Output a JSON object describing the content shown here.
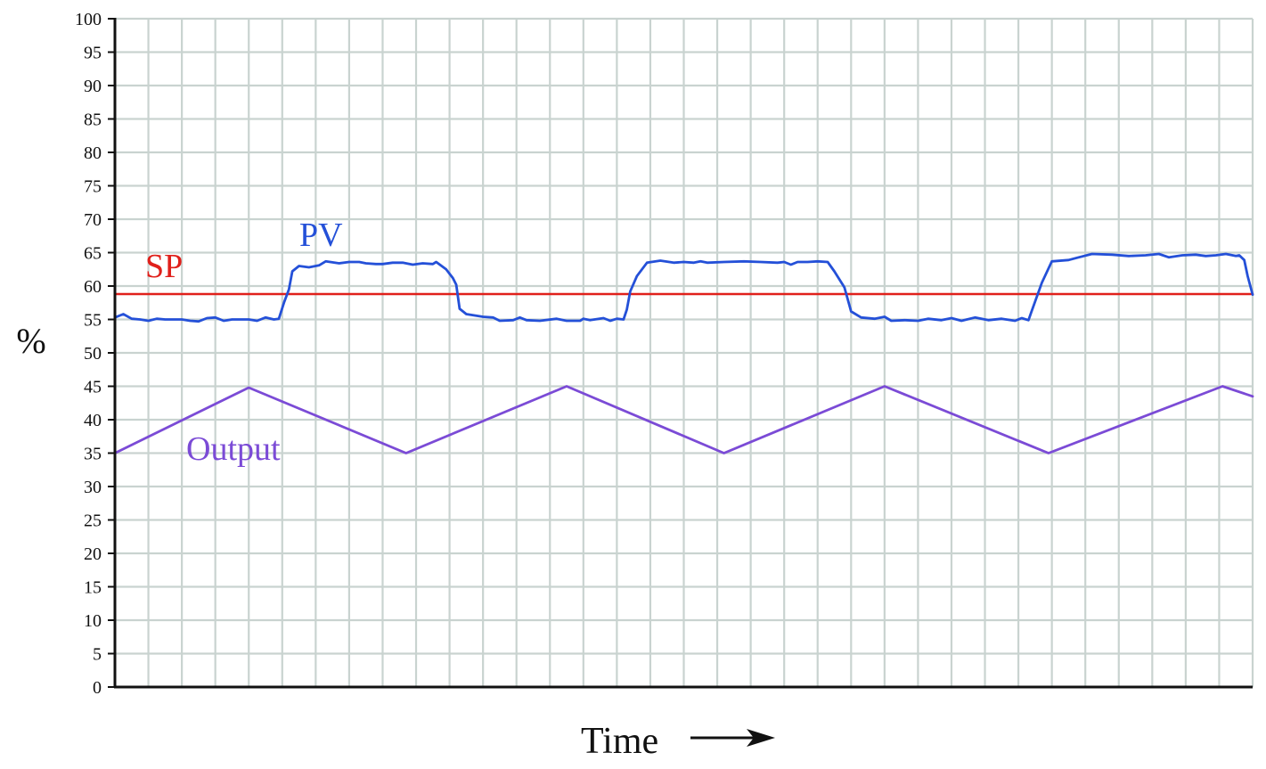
{
  "chart_data": {
    "type": "line",
    "ylabel": "%",
    "xlabel": "Time",
    "xlabel_arrow": "→",
    "ylim": [
      0,
      100
    ],
    "xlim": [
      0,
      34
    ],
    "y_ticks": [
      0,
      5,
      10,
      15,
      20,
      25,
      30,
      35,
      40,
      45,
      50,
      55,
      60,
      65,
      70,
      75,
      80,
      85,
      90,
      95,
      100
    ],
    "grid": true,
    "annotations": [
      {
        "label": "SP",
        "color": "#e0201b",
        "near": "setpoint-line"
      },
      {
        "label": "PV",
        "color": "#2450d8",
        "near": "pv-line"
      },
      {
        "label": "Output",
        "color": "#7b4bd6",
        "near": "output-line"
      }
    ],
    "series": [
      {
        "key": "sp",
        "color": "#e0201b",
        "points": [
          [
            0,
            58.8
          ],
          [
            34,
            58.8
          ]
        ]
      },
      {
        "key": "output",
        "color": "#7b4bd6",
        "points": [
          [
            0,
            35
          ],
          [
            4,
            44.8
          ],
          [
            8.7,
            35
          ],
          [
            13.5,
            45
          ],
          [
            18.2,
            35
          ],
          [
            23.0,
            45
          ],
          [
            27.9,
            35
          ],
          [
            33.1,
            45
          ],
          [
            34,
            43.5
          ]
        ]
      },
      {
        "key": "pv",
        "color": "#2450d8",
        "points": [
          [
            0,
            55.3
          ],
          [
            0.25,
            55.8
          ],
          [
            0.5,
            55.1
          ],
          [
            0.75,
            55
          ],
          [
            1.0,
            54.8
          ],
          [
            1.25,
            55.1
          ],
          [
            1.5,
            55
          ],
          [
            2.0,
            55
          ],
          [
            2.25,
            54.8
          ],
          [
            2.5,
            54.7
          ],
          [
            2.75,
            55.2
          ],
          [
            3.0,
            55.3
          ],
          [
            3.25,
            54.8
          ],
          [
            3.5,
            55
          ],
          [
            4.0,
            55
          ],
          [
            4.25,
            54.8
          ],
          [
            4.5,
            55.3
          ],
          [
            4.75,
            55
          ],
          [
            4.9,
            55.1
          ],
          [
            5.05,
            57.5
          ],
          [
            5.2,
            59.5
          ],
          [
            5.3,
            62.2
          ],
          [
            5.5,
            63
          ],
          [
            5.8,
            62.8
          ],
          [
            6.1,
            63.1
          ],
          [
            6.3,
            63.7
          ],
          [
            6.7,
            63.4
          ],
          [
            7.0,
            63.6
          ],
          [
            7.3,
            63.6
          ],
          [
            7.5,
            63.4
          ],
          [
            7.8,
            63.3
          ],
          [
            8.0,
            63.3
          ],
          [
            8.3,
            63.5
          ],
          [
            8.6,
            63.5
          ],
          [
            8.9,
            63.2
          ],
          [
            9.2,
            63.4
          ],
          [
            9.5,
            63.3
          ],
          [
            9.6,
            63.6
          ],
          [
            9.9,
            62.5
          ],
          [
            10.1,
            61.2
          ],
          [
            10.2,
            60.2
          ],
          [
            10.3,
            56.6
          ],
          [
            10.5,
            55.8
          ],
          [
            11.0,
            55.4
          ],
          [
            11.3,
            55.3
          ],
          [
            11.5,
            54.8
          ],
          [
            11.9,
            54.9
          ],
          [
            12.1,
            55.3
          ],
          [
            12.3,
            54.9
          ],
          [
            12.7,
            54.8
          ],
          [
            13.2,
            55.1
          ],
          [
            13.5,
            54.8
          ],
          [
            13.9,
            54.8
          ],
          [
            14.0,
            55.1
          ],
          [
            14.2,
            54.9
          ],
          [
            14.6,
            55.2
          ],
          [
            14.8,
            54.8
          ],
          [
            15.0,
            55.1
          ],
          [
            15.2,
            55
          ],
          [
            15.3,
            56.5
          ],
          [
            15.4,
            59.2
          ],
          [
            15.6,
            61.5
          ],
          [
            15.9,
            63.5
          ],
          [
            16.3,
            63.8
          ],
          [
            16.7,
            63.5
          ],
          [
            17.0,
            63.6
          ],
          [
            17.3,
            63.5
          ],
          [
            17.5,
            63.7
          ],
          [
            17.7,
            63.5
          ],
          [
            18.2,
            63.6
          ],
          [
            18.8,
            63.7
          ],
          [
            19.3,
            63.6
          ],
          [
            19.8,
            63.5
          ],
          [
            20.0,
            63.6
          ],
          [
            20.2,
            63.2
          ],
          [
            20.4,
            63.6
          ],
          [
            20.7,
            63.6
          ],
          [
            21.0,
            63.7
          ],
          [
            21.3,
            63.6
          ],
          [
            21.5,
            62.2
          ],
          [
            21.8,
            59.8
          ],
          [
            22.0,
            56.2
          ],
          [
            22.3,
            55.3
          ],
          [
            22.7,
            55.1
          ],
          [
            23.0,
            55.4
          ],
          [
            23.2,
            54.8
          ],
          [
            23.6,
            54.9
          ],
          [
            24.0,
            54.8
          ],
          [
            24.3,
            55.1
          ],
          [
            24.7,
            54.9
          ],
          [
            25.0,
            55.2
          ],
          [
            25.3,
            54.8
          ],
          [
            25.7,
            55.3
          ],
          [
            26.1,
            54.9
          ],
          [
            26.5,
            55.1
          ],
          [
            26.9,
            54.8
          ],
          [
            27.1,
            55.2
          ],
          [
            27.3,
            54.9
          ],
          [
            27.4,
            56.3
          ],
          [
            27.7,
            60.5
          ],
          [
            28.0,
            63.7
          ],
          [
            28.5,
            63.9
          ],
          [
            28.8,
            64.3
          ],
          [
            29.2,
            64.8
          ],
          [
            29.8,
            64.7
          ],
          [
            30.3,
            64.5
          ],
          [
            30.8,
            64.6
          ],
          [
            31.2,
            64.8
          ],
          [
            31.5,
            64.3
          ],
          [
            31.9,
            64.6
          ],
          [
            32.3,
            64.7
          ],
          [
            32.6,
            64.5
          ],
          [
            32.9,
            64.6
          ],
          [
            33.2,
            64.8
          ],
          [
            33.5,
            64.5
          ],
          [
            33.6,
            64.6
          ],
          [
            33.75,
            63.9
          ],
          [
            33.85,
            61.5
          ],
          [
            34,
            58.7
          ]
        ]
      }
    ]
  }
}
